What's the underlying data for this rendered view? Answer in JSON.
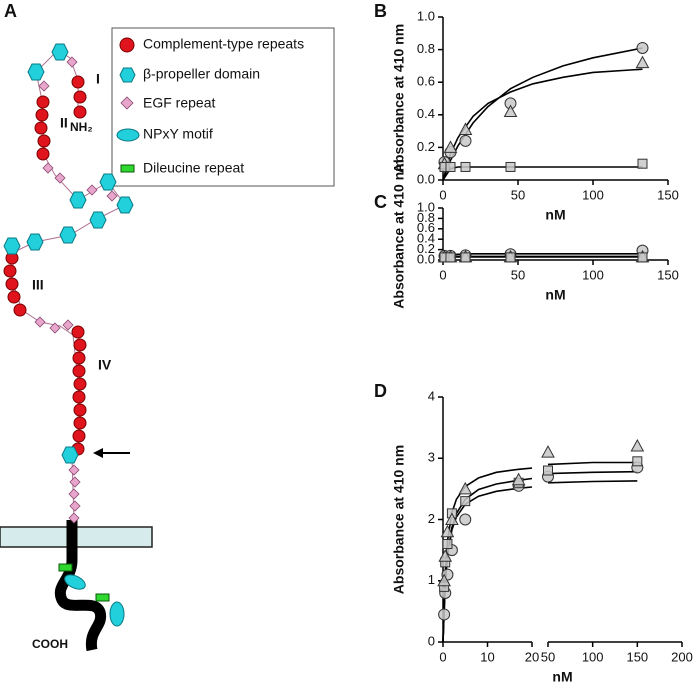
{
  "diagram": {
    "panel_label": "A",
    "legend": [
      "Complement-type repeats",
      "β-propeller domain",
      "EGF repeat",
      "NPxY motif",
      "Dileucine repeat"
    ],
    "labels": {
      "I": "I",
      "II": "II",
      "III": "III",
      "IV": "IV",
      "nh2": "NH₂",
      "cooh": "COOH"
    }
  },
  "chart_data": [
    {
      "type": "scatter",
      "panel_label": "B",
      "x_label": "nM",
      "y_label": "Absorbance at 410 nm",
      "xlim": [
        0,
        150
      ],
      "xticks": [
        0,
        50,
        100,
        150
      ],
      "ylim": [
        0,
        1.0
      ],
      "yticks": [
        {
          "value": 0,
          "label": "0.0"
        },
        0.2,
        0.4,
        0.6,
        0.8,
        {
          "value": 1.0,
          "label": "1.0"
        }
      ],
      "x": [
        1,
        5,
        15,
        45,
        133
      ],
      "series": [
        {
          "marker": "circle",
          "color": "#c8c8c8",
          "values": [
            0.11,
            0.17,
            0.24,
            0.47,
            0.81
          ]
        },
        {
          "marker": "triangle",
          "color": "#c8c8c8",
          "values": [
            0.1,
            0.2,
            0.31,
            0.42,
            0.72
          ]
        },
        {
          "marker": "square",
          "color": "#c8c8c8",
          "values": [
            0.08,
            0.08,
            0.08,
            0.08,
            0.1
          ]
        }
      ],
      "fit_x": [
        0,
        5,
        10,
        20,
        30,
        45,
        60,
        80,
        100,
        133
      ],
      "fits": [
        [
          0,
          0.12,
          0.21,
          0.35,
          0.45,
          0.56,
          0.63,
          0.7,
          0.75,
          0.81
        ],
        [
          0,
          0.16,
          0.26,
          0.39,
          0.47,
          0.54,
          0.59,
          0.63,
          0.66,
          0.68
        ],
        [
          0,
          0.07,
          0.08,
          0.08,
          0.08,
          0.08,
          0.08,
          0.08,
          0.08,
          0.08
        ]
      ]
    },
    {
      "type": "scatter",
      "panel_label": "C",
      "x_label": "nM",
      "y_label": "Absorbance at 410 nm",
      "xlim": [
        0,
        150
      ],
      "xticks": [
        0,
        50,
        100,
        150
      ],
      "ylim": [
        0,
        1.0
      ],
      "yticks": [
        {
          "value": 0,
          "label": "0.0"
        },
        0.2,
        0.4,
        0.6,
        0.8,
        {
          "value": 1.0,
          "label": "1.0"
        }
      ],
      "x": [
        1,
        5,
        15,
        45,
        133
      ],
      "series": [
        {
          "marker": "circle",
          "color": "#c8c8c8",
          "values": [
            0.08,
            0.08,
            0.09,
            0.11,
            0.18
          ]
        },
        {
          "marker": "triangle",
          "color": "#c8c8c8",
          "values": [
            0.06,
            0.06,
            0.06,
            0.06,
            0.06
          ]
        },
        {
          "marker": "square",
          "color": "#c8c8c8",
          "values": [
            0.05,
            0.05,
            0.05,
            0.05,
            0.05
          ]
        }
      ],
      "fit_x": [
        0,
        5,
        10,
        20,
        30,
        45,
        60,
        80,
        100,
        133
      ],
      "fits": [
        [
          0.06,
          0.1,
          0.11,
          0.12,
          0.12,
          0.12,
          0.12,
          0.12,
          0.12,
          0.12
        ],
        [
          0.05,
          0.07,
          0.07,
          0.07,
          0.07,
          0.07,
          0.07,
          0.07,
          0.07,
          0.07
        ],
        [
          0.04,
          0.06,
          0.06,
          0.06,
          0.06,
          0.06,
          0.06,
          0.06,
          0.06,
          0.06
        ]
      ]
    },
    {
      "type": "scatter",
      "panel_label": "D",
      "x_label": "nM",
      "y_label": "Absorbance at 410 nm",
      "x_segments": [
        {
          "xlim": [
            0,
            20
          ],
          "xticks": [
            0,
            10,
            20
          ]
        },
        {
          "xlim": [
            50,
            200
          ],
          "xticks": [
            50,
            100,
            150,
            200
          ]
        }
      ],
      "ylim": [
        0,
        4
      ],
      "yticks": [
        0,
        1,
        2,
        3,
        4
      ],
      "x": [
        0.25,
        0.5,
        1,
        2,
        5,
        17,
        50,
        150
      ],
      "series": [
        {
          "marker": "circle",
          "color": "#c8c8c8",
          "values": [
            0.45,
            0.8,
            1.1,
            1.5,
            2.0,
            2.55,
            2.7,
            2.85
          ]
        },
        {
          "marker": "square",
          "color": "#c8c8c8",
          "values": [
            0.9,
            1.3,
            1.6,
            2.1,
            2.3,
            2.6,
            2.8,
            2.95
          ]
        },
        {
          "marker": "triangle",
          "color": "#c8c8c8",
          "values": [
            1.0,
            1.4,
            1.8,
            2.0,
            2.5,
            2.65,
            3.1,
            3.2
          ]
        }
      ],
      "fit_x": [
        0,
        0.5,
        1,
        2,
        3,
        5,
        8,
        12,
        17,
        20,
        50,
        100,
        150
      ],
      "fits": [
        [
          0,
          1.13,
          1.64,
          2.11,
          2.33,
          2.54,
          2.68,
          2.77,
          2.82,
          2.84,
          2.9,
          2.93,
          2.93
        ],
        [
          0,
          0.93,
          1.4,
          1.87,
          2.1,
          2.33,
          2.49,
          2.58,
          2.64,
          2.67,
          2.75,
          2.77,
          2.78
        ],
        [
          0,
          0.95,
          1.39,
          1.83,
          2.04,
          2.25,
          2.38,
          2.46,
          2.51,
          2.53,
          2.6,
          2.62,
          2.63
        ]
      ]
    }
  ]
}
